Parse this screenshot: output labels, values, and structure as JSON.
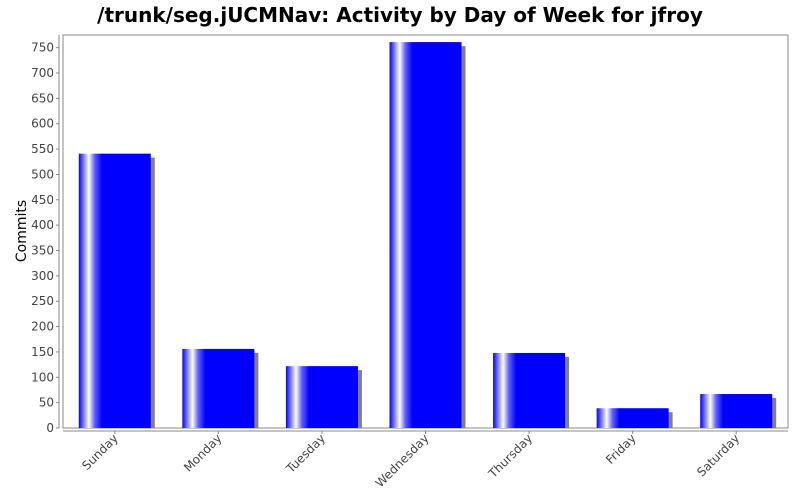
{
  "chart_data": {
    "type": "bar",
    "title": "/trunk/seg.jUCMNav: Activity by Day of Week for jfroy",
    "xlabel": "",
    "ylabel": "Commits",
    "categories": [
      "Sunday",
      "Monday",
      "Tuesday",
      "Wednesday",
      "Thursday",
      "Friday",
      "Saturday"
    ],
    "values": [
      541,
      156,
      122,
      761,
      148,
      39,
      67
    ],
    "ylim": [
      0,
      775
    ],
    "yticks": [
      0,
      50,
      100,
      150,
      200,
      250,
      300,
      350,
      400,
      450,
      500,
      550,
      600,
      650,
      700,
      750
    ],
    "bar_color": "#0000ff",
    "highlight_color": "#ffffff",
    "shadow_color": "#808080",
    "grid": false,
    "legend": "none"
  }
}
